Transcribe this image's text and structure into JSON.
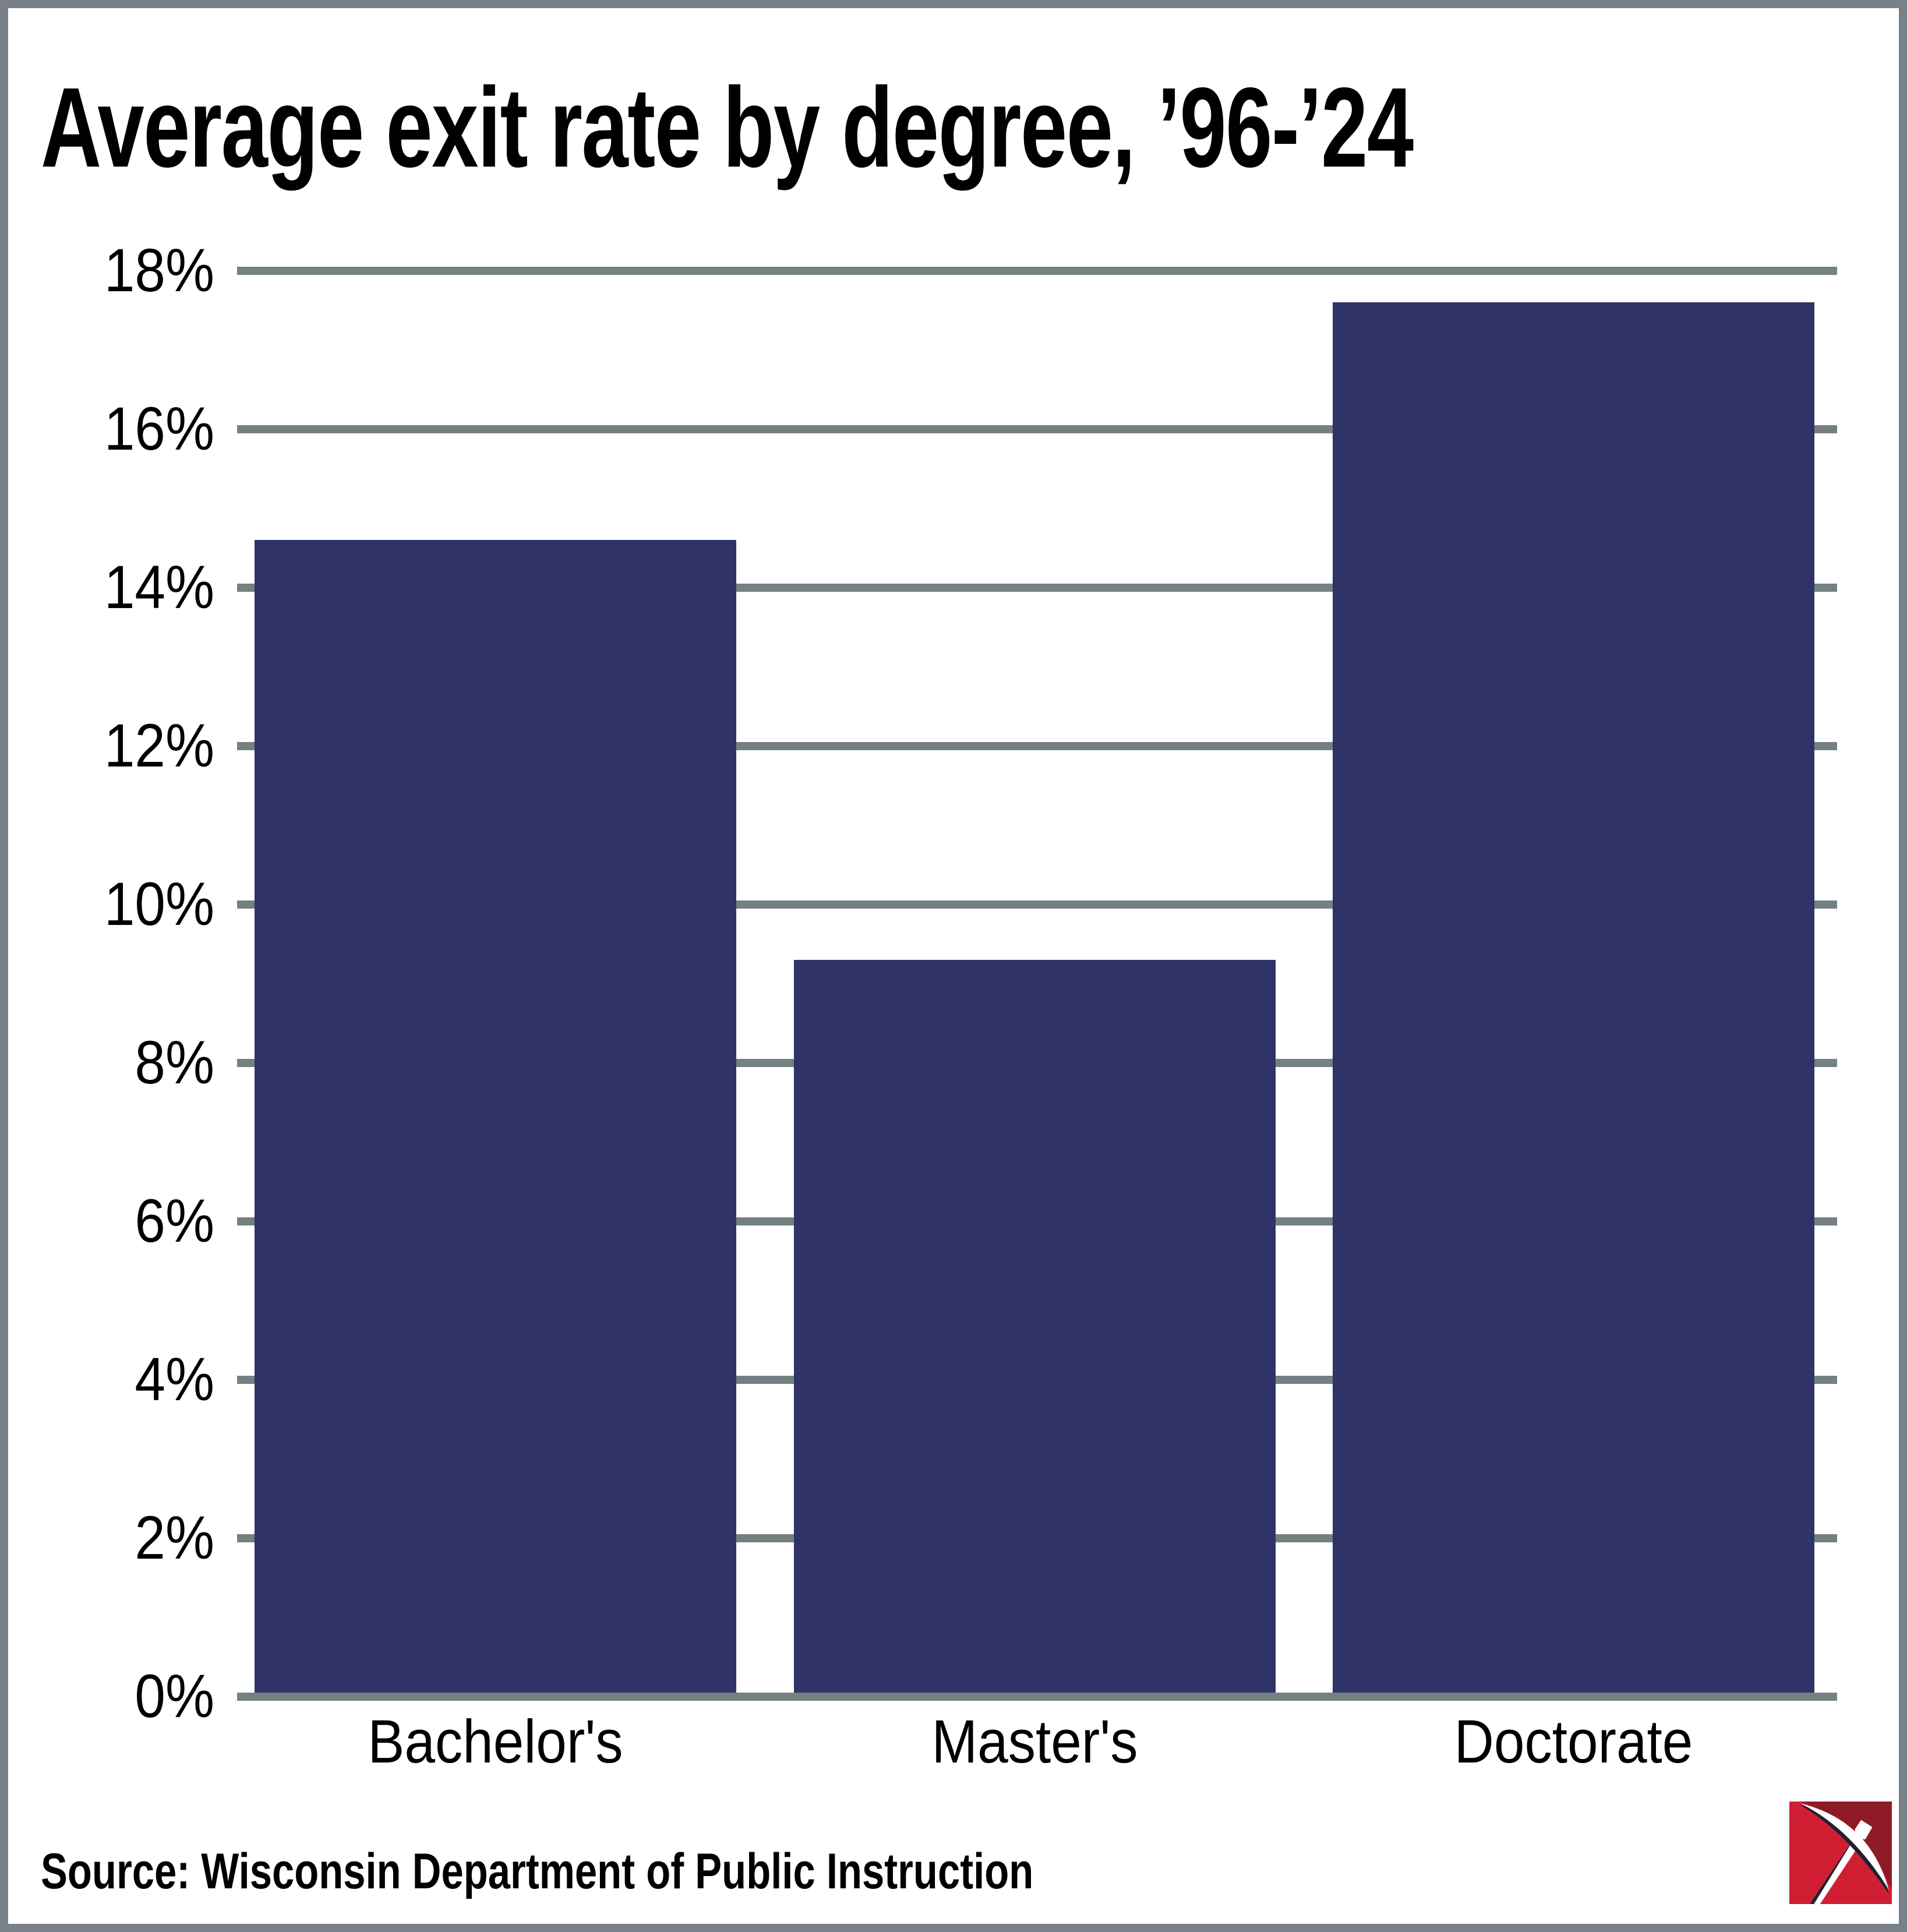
{
  "source": "Source: Wisconsin Department of Public Instruction",
  "chart_data": {
    "type": "bar",
    "title": "Average exit rate by degree, ’96-’24",
    "categories": [
      "Bachelor's",
      "Master's",
      "Doctorate"
    ],
    "values": [
      14.6,
      9.3,
      17.6
    ],
    "xlabel": "",
    "ylabel": "",
    "ylim": [
      0,
      18
    ],
    "ytick_step": 2,
    "ytick_labels": [
      "0%",
      "2%",
      "4%",
      "6%",
      "8%",
      "10%",
      "12%",
      "14%",
      "16%",
      "18%"
    ],
    "grid": "horizontal",
    "legend": "none",
    "bar_color": "#2f3368",
    "gridline_color": "#748082",
    "frame_color": "#788089",
    "background_color": "#ffffff",
    "text_color": "#000000"
  },
  "logo": {
    "name": "pickaxe-logo",
    "colors": {
      "red": "#d01f33",
      "dark_red": "#8e1a26",
      "navy": "#1c2133",
      "white": "#ffffff"
    }
  }
}
